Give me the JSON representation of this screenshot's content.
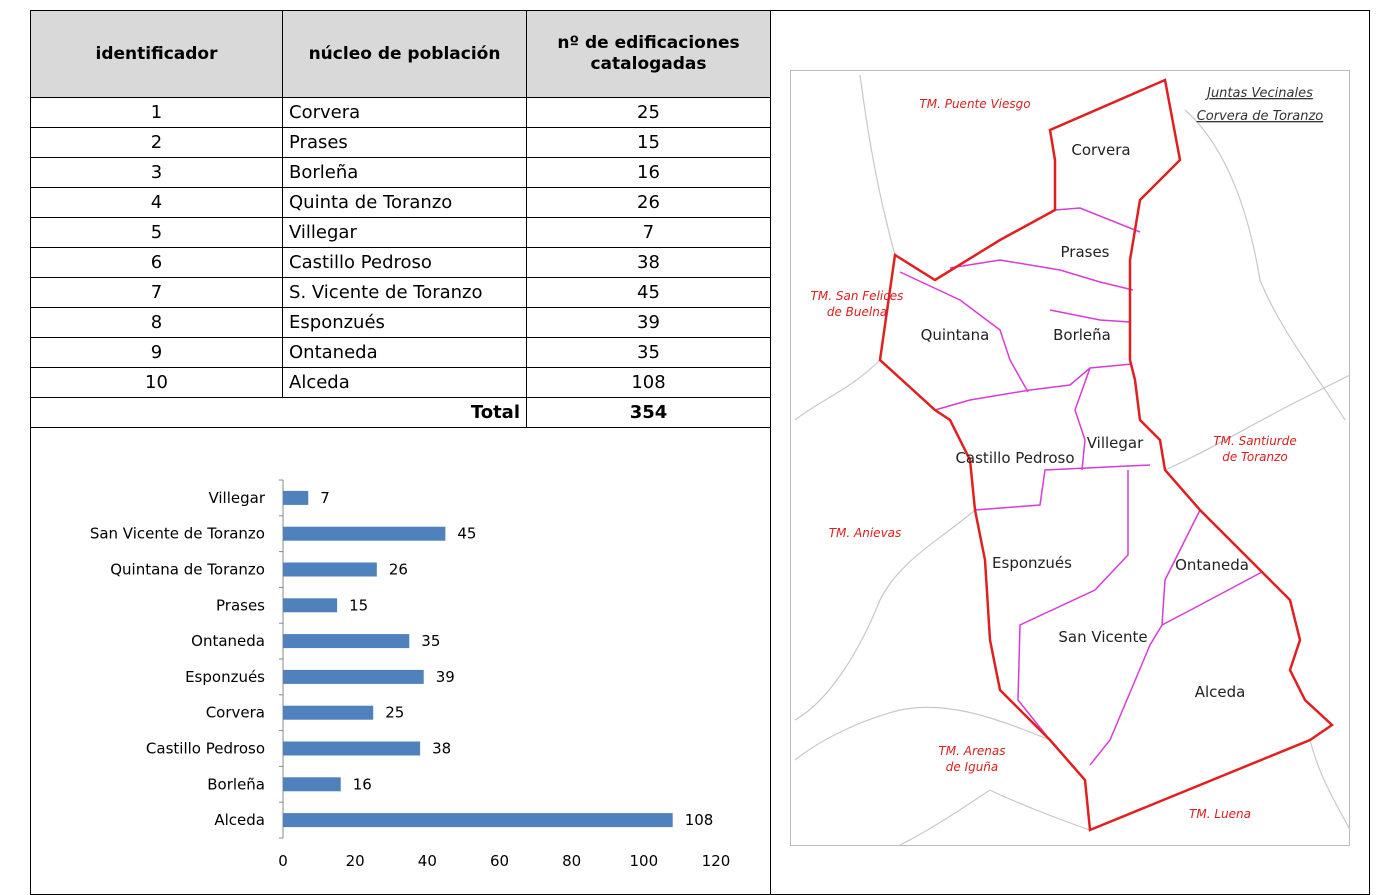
{
  "table": {
    "headers": [
      "identificador",
      "núcleo de población",
      "nº de edificaciones catalogadas"
    ],
    "rows": [
      [
        1,
        "Corvera",
        25
      ],
      [
        2,
        "Prases",
        15
      ],
      [
        3,
        "Borleña",
        16
      ],
      [
        4,
        "Quinta de Toranzo",
        26
      ],
      [
        5,
        "Villegar",
        7
      ],
      [
        6,
        "Castillo Pedroso",
        38
      ],
      [
        7,
        "S. Vicente de Toranzo",
        45
      ],
      [
        8,
        "Esponzués",
        39
      ],
      [
        9,
        "Ontaneda",
        35
      ],
      [
        10,
        "Alceda",
        108
      ]
    ],
    "total_label": "Total",
    "total_value": 354
  },
  "chart_data": {
    "type": "hbar",
    "categories": [
      "Villegar",
      "San Vicente de Toranzo",
      "Quintana de Toranzo",
      "Prases",
      "Ontaneda",
      "Esponzués",
      "Corvera",
      "Castillo Pedroso",
      "Borleña",
      "Alceda"
    ],
    "values": [
      7,
      45,
      26,
      15,
      35,
      39,
      25,
      38,
      16,
      108
    ],
    "color": "#4f81bd",
    "xlim": [
      0,
      120
    ],
    "xticks": [
      0,
      20,
      40,
      60,
      80,
      100,
      120
    ]
  },
  "map": {
    "legend": [
      "Juntas Vecinales",
      "Corvera de Toranzo"
    ],
    "regions": [
      "Corvera",
      "Prases",
      "Quintana",
      "Borleña",
      "Villegar",
      "Castillo Pedroso",
      "Esponzués",
      "Ontaneda",
      "San Vicente",
      "Alceda"
    ],
    "neighbors": [
      [
        "TM. Puente Viesgo"
      ],
      [
        "TM. San Felices",
        "de Buelna"
      ],
      [
        "TM. Santiurde",
        "de Toranzo"
      ],
      [
        "TM. Anievas"
      ],
      [
        "TM. Arenas",
        "de Iguña"
      ],
      [
        "TM. Luena"
      ]
    ]
  }
}
